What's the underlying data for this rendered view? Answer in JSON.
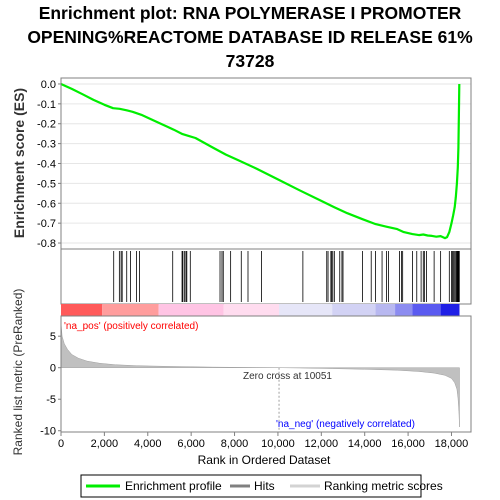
{
  "chart_data": {
    "type": "line",
    "title_lines": [
      "Enrichment plot: RNA POLYMERASE I PROMOTER",
      "OPENING%REACTOME DATABASE ID RELEASE 61%",
      "73728"
    ],
    "top_panel": {
      "ylabel": "Enrichment score (ES)",
      "ylim": [
        -0.83,
        0.03
      ],
      "yticks": [
        "0.0",
        "-0.1",
        "-0.2",
        "-0.3",
        "-0.4",
        "-0.5",
        "-0.6",
        "-0.7",
        "-0.8"
      ],
      "ytick_values": [
        0.0,
        -0.1,
        -0.2,
        -0.3,
        -0.4,
        -0.5,
        -0.6,
        -0.7,
        -0.8
      ],
      "series": [
        {
          "name": "Enrichment profile",
          "color": "#00ee00",
          "x": [
            0,
            500,
            1000,
            1500,
            2000,
            2400,
            2700,
            3000,
            3300,
            3700,
            4200,
            4700,
            5200,
            5600,
            5900,
            6200,
            7000,
            7600,
            8200,
            9000,
            10000,
            11000,
            12000,
            12600,
            13200,
            13900,
            14500,
            15000,
            15500,
            15800,
            16200,
            16500,
            16700,
            16900,
            17100,
            17300,
            17500,
            17700,
            17800,
            17900,
            18000,
            18080,
            18150,
            18200,
            18250,
            18290,
            18320,
            18340,
            18360
          ],
          "y": [
            0.0,
            -0.025,
            -0.052,
            -0.08,
            -0.105,
            -0.122,
            -0.125,
            -0.132,
            -0.14,
            -0.155,
            -0.18,
            -0.205,
            -0.23,
            -0.252,
            -0.262,
            -0.272,
            -0.32,
            -0.355,
            -0.385,
            -0.425,
            -0.48,
            -0.535,
            -0.588,
            -0.62,
            -0.65,
            -0.68,
            -0.705,
            -0.718,
            -0.73,
            -0.745,
            -0.755,
            -0.76,
            -0.757,
            -0.762,
            -0.764,
            -0.768,
            -0.765,
            -0.775,
            -0.77,
            -0.745,
            -0.7,
            -0.66,
            -0.62,
            -0.57,
            -0.5,
            -0.42,
            -0.32,
            -0.15,
            0.0
          ]
        }
      ]
    },
    "hits": [
      2430,
      2690,
      2770,
      2820,
      3030,
      3200,
      3480,
      3620,
      5150,
      5580,
      5620,
      5700,
      5760,
      5800,
      5960,
      7330,
      7420,
      7480,
      7820,
      8310,
      8620,
      9240,
      11150,
      12250,
      12310,
      12440,
      12480,
      12530,
      12600,
      12850,
      12950,
      13000,
      13900,
      14300,
      14500,
      14800,
      15000,
      15100,
      15600,
      15700,
      15750,
      16200,
      16400,
      16600,
      16700,
      16750,
      16850,
      17200,
      17500,
      17900,
      18000,
      18050,
      18100,
      18150,
      18200,
      18230,
      18260,
      18280,
      18300,
      18320,
      18340,
      18360
    ],
    "bottom_panel": {
      "ylabel": "Ranked list metric (PreRanked)",
      "ylim": [
        -10.2,
        8.2
      ],
      "yticks": [
        "5",
        "0",
        "-5",
        "-10"
      ],
      "ytick_values": [
        5,
        0,
        -5,
        -10
      ],
      "metric_x": [
        0,
        50,
        150,
        300,
        500,
        800,
        1200,
        1800,
        2500,
        3500,
        5000,
        7000,
        9000,
        10051,
        11000,
        12500,
        14000,
        15500,
        16500,
        17200,
        17700,
        18000,
        18150,
        18250,
        18300,
        18340,
        18370
      ],
      "metric_y": [
        7.2,
        5.0,
        3.8,
        2.9,
        2.1,
        1.5,
        1.05,
        0.7,
        0.48,
        0.32,
        0.2,
        0.1,
        0.03,
        0.0,
        -0.05,
        -0.14,
        -0.25,
        -0.4,
        -0.6,
        -0.85,
        -1.2,
        -1.7,
        -2.4,
        -3.4,
        -4.8,
        -7.0,
        -9.4
      ],
      "color": "#c0c0c0",
      "pos_label": "'na_pos' (positively correlated)",
      "neg_label": "'na_neg' (negatively correlated)",
      "zero_cross_label": "Zero cross at 10051",
      "zero_cross": 10051
    },
    "xaxis": {
      "label": "Rank in Ordered Dataset",
      "xlim": [
        0,
        18900
      ],
      "ticks": [
        "0",
        "2,000",
        "4,000",
        "6,000",
        "8,000",
        "10,000",
        "12,000",
        "14,000",
        "16,000",
        "18,000"
      ],
      "tick_values": [
        0,
        2000,
        4000,
        6000,
        8000,
        10000,
        12000,
        14000,
        16000,
        18000
      ]
    },
    "legend": {
      "placement": "bottom",
      "entries": [
        {
          "label": "Enrichment profile",
          "color": "#00ee00"
        },
        {
          "label": "Hits",
          "color": "#808080"
        },
        {
          "label": "Ranking metric scores",
          "color": "#d3d3d3"
        }
      ]
    },
    "colors": {
      "pos_text": "#ff0000",
      "neg_text": "#0000ff",
      "hit_line": "#000000"
    }
  }
}
